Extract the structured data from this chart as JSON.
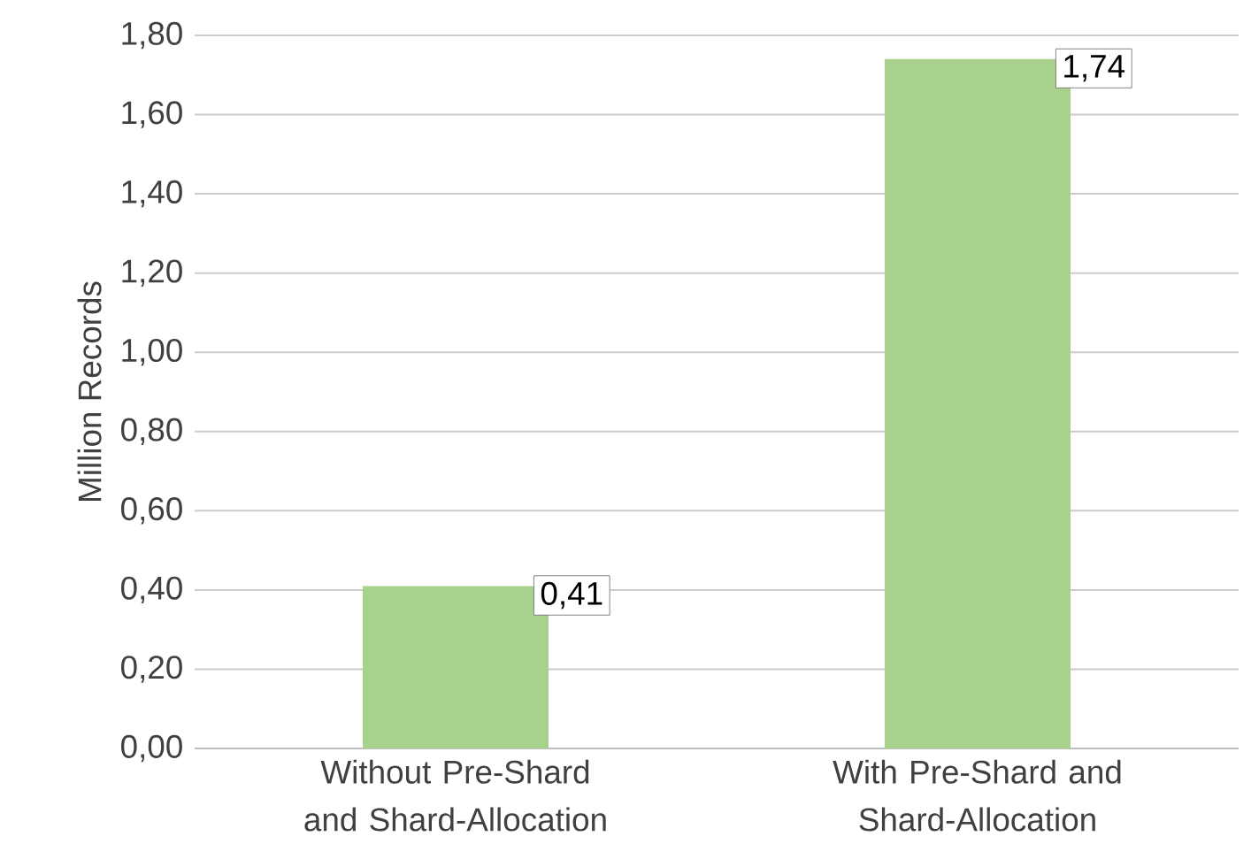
{
  "chart_data": {
    "type": "bar",
    "ylabel": "Million Records",
    "categories": [
      "Without Pre-Shard and Shard-Allocation",
      "With Pre-Shard and Shard-Allocation"
    ],
    "values": [
      0.41,
      1.74
    ],
    "value_labels": [
      "0,41",
      "1,74"
    ],
    "color": "#a9d18e",
    "ylim": [
      0,
      1.8
    ],
    "yticks": [
      {
        "value": 0,
        "label": "0,00"
      },
      {
        "value": 0.2,
        "label": "0,20"
      },
      {
        "value": 0.4,
        "label": "0,40"
      },
      {
        "value": 0.6,
        "label": "0,60"
      },
      {
        "value": 0.8,
        "label": "0,80"
      },
      {
        "value": 1.0,
        "label": "1,00"
      },
      {
        "value": 1.2,
        "label": "1,20"
      },
      {
        "value": 1.4,
        "label": "1,40"
      },
      {
        "value": 1.6,
        "label": "1,60"
      },
      {
        "value": 1.8,
        "label": "1,80"
      }
    ],
    "grid": "y"
  }
}
